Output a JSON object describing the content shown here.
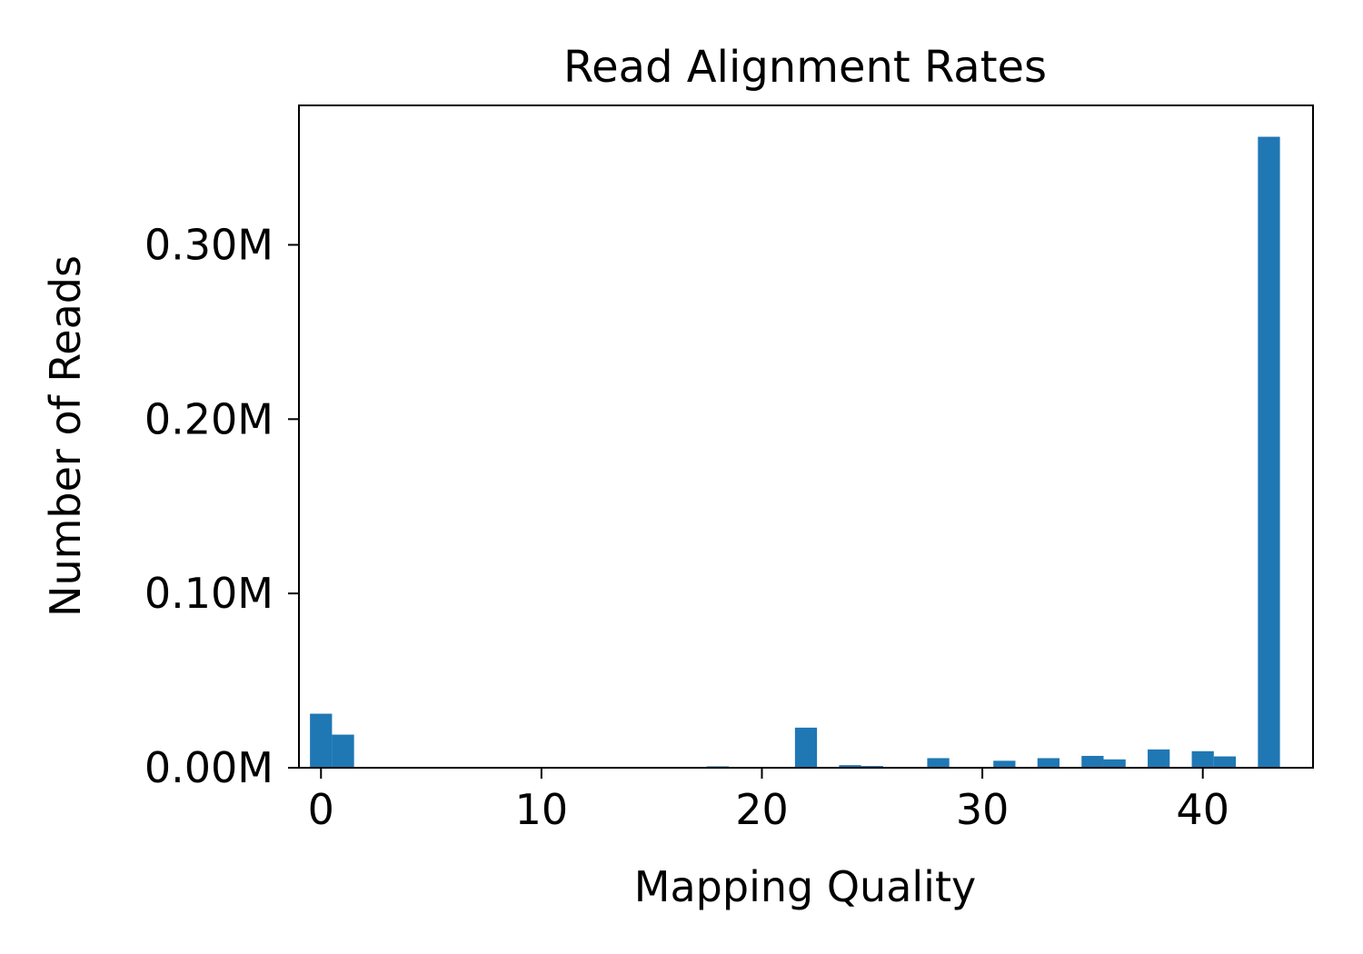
{
  "chart_data": {
    "type": "bar",
    "title": "Read Alignment Rates",
    "xlabel": "Mapping Quality",
    "ylabel": "Number of Reads",
    "xlim": [
      -1,
      45
    ],
    "ylim": [
      0,
      0.38
    ],
    "x_ticks": [
      0,
      10,
      20,
      30,
      40
    ],
    "x_tick_labels": [
      "0",
      "10",
      "20",
      "30",
      "40"
    ],
    "y_ticks": [
      0.0,
      0.1,
      0.2,
      0.3
    ],
    "y_tick_labels": [
      "0.00M",
      "0.10M",
      "0.20M",
      "0.30M"
    ],
    "y_unit": "M reads",
    "bar_color": "#1f77b4",
    "grid": false,
    "legend": "none",
    "series": [
      {
        "x": [
          0,
          1,
          14,
          18,
          22,
          24,
          25,
          28,
          31,
          33,
          35,
          36,
          38,
          40,
          41,
          43
        ],
        "values": [
          0.031,
          0.019,
          0.0005,
          0.0008,
          0.023,
          0.0015,
          0.001,
          0.0055,
          0.004,
          0.0055,
          0.0068,
          0.0048,
          0.0105,
          0.0095,
          0.0065,
          0.362
        ]
      }
    ]
  }
}
